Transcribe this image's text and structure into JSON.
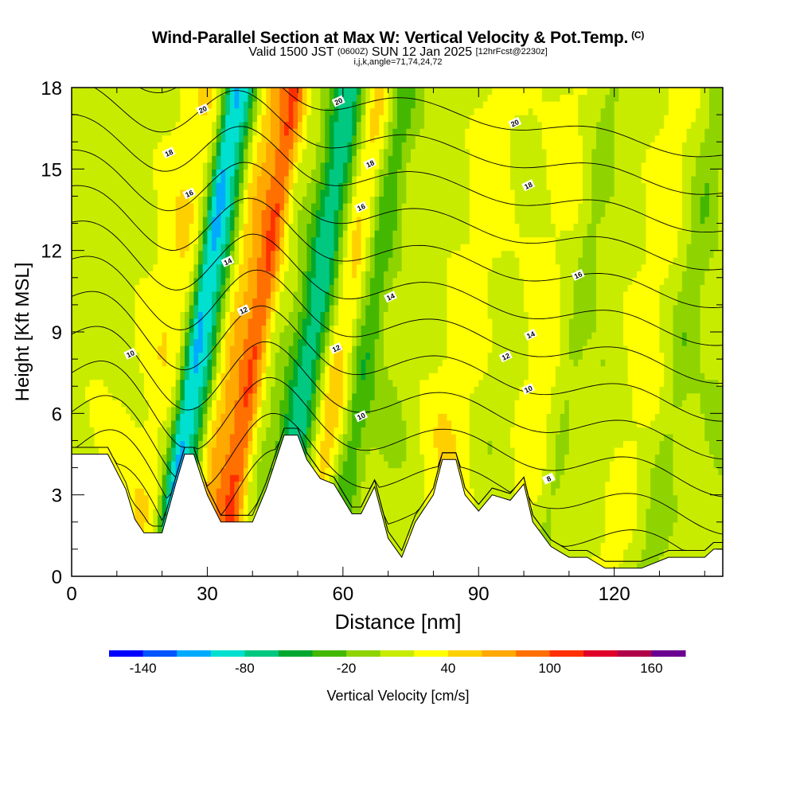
{
  "header": {
    "title": "Wind-Parallel Section at Max W: Vertical Velocity & Pot.Temp.",
    "title_tag": "(C)",
    "valid_prefix": "Valid 1500 JST",
    "valid_utc": "(0600Z)",
    "valid_date": "SUN 12 Jan 2025",
    "forecast": "[12hrFcst@2230z]",
    "params": "i,j,k,angle=71,74,24,72"
  },
  "chart_data": {
    "type": "heatmap",
    "xlabel": "Distance [nm]",
    "ylabel": "Height [Kft MSL]",
    "xlim": [
      0,
      144
    ],
    "ylim": [
      0,
      18
    ],
    "x_ticks": [
      "0",
      "30",
      "60",
      "90",
      "120"
    ],
    "y_ticks": [
      "0",
      "3",
      "6",
      "9",
      "12",
      "15",
      "18"
    ],
    "colorbar": {
      "label": "Vertical Velocity [cm/s]",
      "tick_labels": [
        "-140",
        "-80",
        "-20",
        "40",
        "100",
        "160"
      ],
      "tick_values": [
        -140,
        -80,
        -20,
        40,
        100,
        160
      ],
      "min": -160,
      "step": 20,
      "colors": [
        "#0000ff",
        "#0055ff",
        "#00aaff",
        "#00e0d0",
        "#00c880",
        "#00a830",
        "#44b800",
        "#8fd400",
        "#c8ec00",
        "#ffff00",
        "#ffd000",
        "#ffa800",
        "#ff7000",
        "#ff3000",
        "#e0002a",
        "#b00048",
        "#6a0090"
      ]
    },
    "updraft_bands": [
      {
        "x": 12,
        "w": 4.0,
        "a": 10
      },
      {
        "x": 18,
        "w": 4.5,
        "a": 30
      },
      {
        "x": 34,
        "w": 4.0,
        "a": 55
      },
      {
        "x": 38,
        "w": 2.5,
        "a": 70
      },
      {
        "x": 56,
        "w": 4.0,
        "a": 40
      },
      {
        "x": 84,
        "w": 6.0,
        "a": 22
      },
      {
        "x": 100,
        "w": 6.0,
        "a": 18
      },
      {
        "x": 123,
        "w": 5.0,
        "a": 22
      }
    ],
    "downdraft_bands": [
      {
        "x": 24,
        "w": 2.2,
        "a": -90
      },
      {
        "x": 27,
        "w": 2.5,
        "a": -75
      },
      {
        "x": 50,
        "w": 4.0,
        "a": -85
      },
      {
        "x": 62,
        "w": 3.0,
        "a": -45
      },
      {
        "x": 108,
        "w": 2.5,
        "a": -20
      },
      {
        "x": 132,
        "w": 3.0,
        "a": -25
      }
    ],
    "terrain": [
      [
        0,
        4.5
      ],
      [
        8,
        4.5
      ],
      [
        12,
        3.2
      ],
      [
        14,
        2.1
      ],
      [
        16,
        1.6
      ],
      [
        20,
        1.6
      ],
      [
        23,
        3.4
      ],
      [
        25,
        4.5
      ],
      [
        27,
        4.5
      ],
      [
        30,
        3.0
      ],
      [
        33,
        2.0
      ],
      [
        40,
        2.0
      ],
      [
        43,
        3.2
      ],
      [
        47,
        5.2
      ],
      [
        50,
        5.2
      ],
      [
        52,
        4.3
      ],
      [
        55,
        3.6
      ],
      [
        58,
        3.4
      ],
      [
        62,
        2.3
      ],
      [
        64,
        2.3
      ],
      [
        67,
        3.3
      ],
      [
        70,
        1.4
      ],
      [
        73,
        0.7
      ],
      [
        76,
        2.0
      ],
      [
        80,
        3.0
      ],
      [
        82,
        4.3
      ],
      [
        85,
        4.3
      ],
      [
        87,
        3.0
      ],
      [
        90,
        2.4
      ],
      [
        93,
        3.0
      ],
      [
        97,
        2.8
      ],
      [
        100,
        3.4
      ],
      [
        102,
        2.0
      ],
      [
        106,
        1.1
      ],
      [
        110,
        0.7
      ],
      [
        114,
        0.7
      ],
      [
        118,
        0.3
      ],
      [
        126,
        0.3
      ],
      [
        132,
        0.7
      ],
      [
        140,
        0.7
      ],
      [
        142,
        1.0
      ],
      [
        144,
        1.0
      ]
    ],
    "theta_labels": [
      {
        "text": "20",
        "x": 29,
        "y": 17.2
      },
      {
        "text": "18",
        "x": 21.5,
        "y": 15.6
      },
      {
        "text": "16",
        "x": 26,
        "y": 14.1
      },
      {
        "text": "14",
        "x": 34.5,
        "y": 11.6
      },
      {
        "text": "12",
        "x": 38,
        "y": 9.8
      },
      {
        "text": "10",
        "x": 13,
        "y": 8.2
      },
      {
        "text": "20",
        "x": 59,
        "y": 17.5
      },
      {
        "text": "18",
        "x": 66,
        "y": 15.2
      },
      {
        "text": "16",
        "x": 64,
        "y": 13.6
      },
      {
        "text": "14",
        "x": 70.5,
        "y": 10.3
      },
      {
        "text": "12",
        "x": 58.5,
        "y": 8.4
      },
      {
        "text": "10",
        "x": 64,
        "y": 5.9
      },
      {
        "text": "20",
        "x": 98,
        "y": 16.7
      },
      {
        "text": "18",
        "x": 101,
        "y": 14.4
      },
      {
        "text": "16",
        "x": 112,
        "y": 11.1
      },
      {
        "text": "14",
        "x": 101.5,
        "y": 8.9
      },
      {
        "text": "12",
        "x": 96,
        "y": 8.1
      },
      {
        "text": "10",
        "x": 101,
        "y": 6.9
      },
      {
        "text": "8",
        "x": 105.5,
        "y": 3.6
      }
    ]
  }
}
